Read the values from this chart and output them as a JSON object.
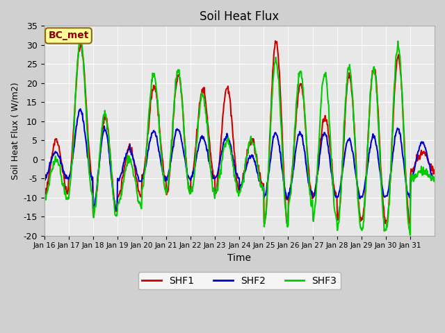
{
  "title": "Soil Heat Flux",
  "xlabel": "Time",
  "ylabel": "Soil Heat Flux ( W/m2)",
  "ylim": [
    -20,
    35
  ],
  "annotation": "BC_met",
  "legend_labels": [
    "SHF1",
    "SHF2",
    "SHF3"
  ],
  "colors": {
    "SHF1": "#cc0000",
    "SHF2": "#0000cc",
    "SHF3": "#00cc00"
  },
  "xtick_labels": [
    "Jan 16",
    "Jan 17",
    "Jan 18",
    "Jan 19",
    "Jan 20",
    "Jan 21",
    "Jan 22",
    "Jan 23",
    "Jan 24",
    "Jan 25",
    "Jan 26",
    "Jan 27",
    "Jan 28",
    "Jan 29",
    "Jan 30",
    "Jan 31"
  ],
  "ytick_values": [
    -20,
    -15,
    -10,
    -5,
    0,
    5,
    10,
    15,
    20,
    25,
    30,
    35
  ],
  "linewidth": 1.5,
  "days": 16,
  "points_per_day": 48,
  "amps1": [
    5,
    30,
    11,
    3,
    19,
    22,
    18,
    19,
    5,
    31,
    20,
    11,
    22,
    24,
    27,
    2
  ],
  "mins1": [
    -9,
    -5,
    -14,
    -10,
    -5,
    -9,
    -5,
    -8,
    -7,
    -17,
    -10,
    -10,
    -16,
    -16,
    -17,
    -3
  ],
  "amps2": [
    2,
    13,
    8,
    2.5,
    7.5,
    8,
    6,
    6,
    1,
    7,
    7,
    7,
    5.5,
    6,
    8,
    4.5
  ],
  "mins2": [
    -5,
    -5,
    -13,
    -6,
    -5,
    -5,
    -5,
    -5,
    -7.5,
    -10,
    -9,
    -10,
    -10,
    -10,
    -10,
    -5
  ],
  "amps3": [
    0,
    31,
    12,
    0,
    22,
    23,
    17,
    5,
    5,
    26,
    23,
    23,
    24,
    24,
    30,
    -3
  ],
  "mins3": [
    -10,
    -9,
    -15,
    -12,
    -8,
    -9,
    -9,
    -8.5,
    -8,
    -17,
    -12,
    -16,
    -18,
    -19,
    -19,
    -5
  ],
  "noise1": 0.5,
  "noise2": 0.3,
  "noise3": 0.6,
  "seed1": 1,
  "seed2": 2,
  "seed3": 3,
  "fig_bg": "#d0d0d0",
  "plot_bg": "#e8e8e8",
  "grid_color": "#ffffff",
  "spine_color": "#aaaaaa"
}
